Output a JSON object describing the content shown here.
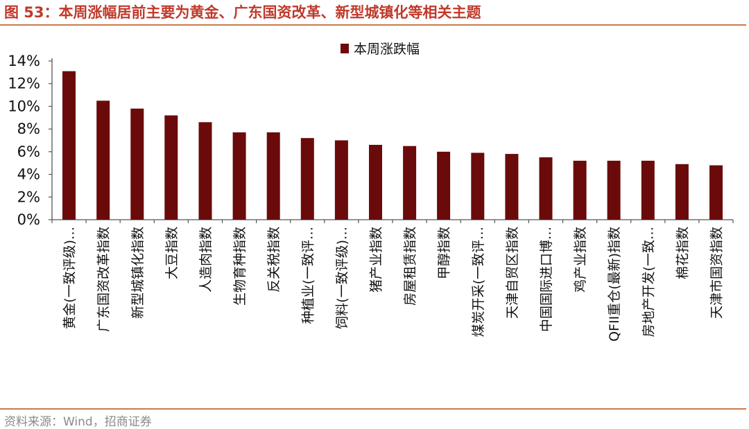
{
  "figure": {
    "title": "图 53：本周涨幅居前主要为黄金、广东国资改革、新型城镇化等相关主题",
    "source": "资料来源：Wind，招商证券"
  },
  "colors": {
    "bar": "#6b0a0a",
    "title": "#c0392b",
    "rule": "#c87a4e",
    "axis": "#555555",
    "text": "#111111"
  },
  "chart_data": {
    "type": "bar",
    "categories": [
      "黄金(一致评级)…",
      "广东国资改革指数",
      "新型城镇化指数",
      "大豆指数",
      "人造肉指数",
      "生物育种指数",
      "反关税指数",
      "种植业(一致评…",
      "饲料(一致评级)…",
      "猪产业指数",
      "房屋租赁指数",
      "甲醇指数",
      "煤炭开采(一致评…",
      "天津自贸区指数",
      "中国国际进口博…",
      "鸡产业指数",
      "QFII重仓(最新)指数",
      "房地产开发(一致…",
      "棉花指数",
      "天津市国资指数"
    ],
    "series": [
      {
        "name": "本周涨跌幅",
        "values": [
          13.1,
          10.5,
          9.8,
          9.2,
          8.6,
          7.7,
          7.7,
          7.2,
          7.0,
          6.6,
          6.5,
          6.0,
          5.9,
          5.8,
          5.5,
          5.2,
          5.2,
          5.2,
          4.9,
          4.8
        ]
      }
    ],
    "yticks": [
      "0%",
      "2%",
      "4%",
      "6%",
      "8%",
      "10%",
      "12%",
      "14%"
    ],
    "ylim": [
      0,
      14
    ],
    "grid": false,
    "legend_position": "top-center"
  }
}
